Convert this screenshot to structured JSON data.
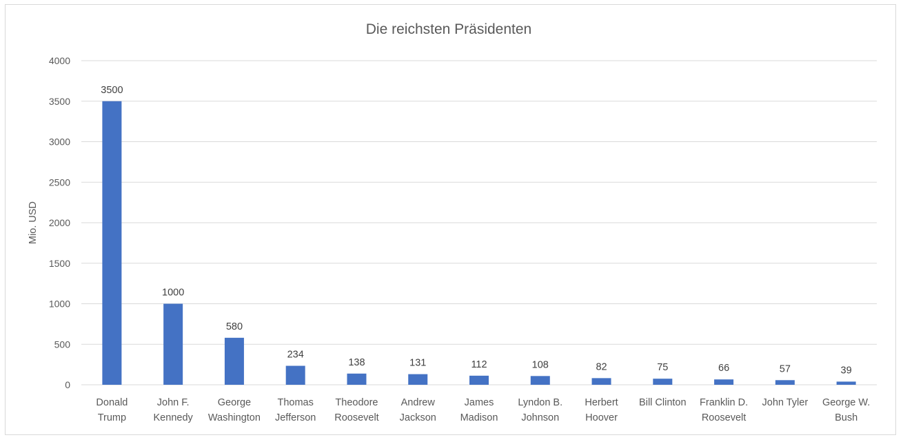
{
  "chart_data": {
    "type": "bar",
    "title": "Die reichsten Präsidenten",
    "xlabel": "",
    "ylabel": "Mio. USD",
    "ylim": [
      0,
      4000
    ],
    "yticks": [
      "0",
      "500",
      "1000",
      "1500",
      "2000",
      "2500",
      "3000",
      "3500",
      "4000"
    ],
    "grid": true,
    "legend": "none",
    "bar_color": "#4472C4",
    "categories": [
      [
        "Donald",
        "Trump"
      ],
      [
        "John F.",
        "Kennedy"
      ],
      [
        "George",
        "Washington"
      ],
      [
        "Thomas",
        "Jefferson"
      ],
      [
        "Theodore",
        "Roosevelt"
      ],
      [
        "Andrew",
        "Jackson"
      ],
      [
        "James",
        "Madison"
      ],
      [
        "Lyndon B.",
        "Johnson"
      ],
      [
        "Herbert",
        "Hoover"
      ],
      [
        "Bill Clinton"
      ],
      [
        "Franklin D.",
        "Roosevelt"
      ],
      [
        "John Tyler"
      ],
      [
        "George W.",
        "Bush"
      ]
    ],
    "values": [
      3500,
      1000,
      580,
      234,
      138,
      131,
      112,
      108,
      82,
      75,
      66,
      57,
      39
    ]
  }
}
